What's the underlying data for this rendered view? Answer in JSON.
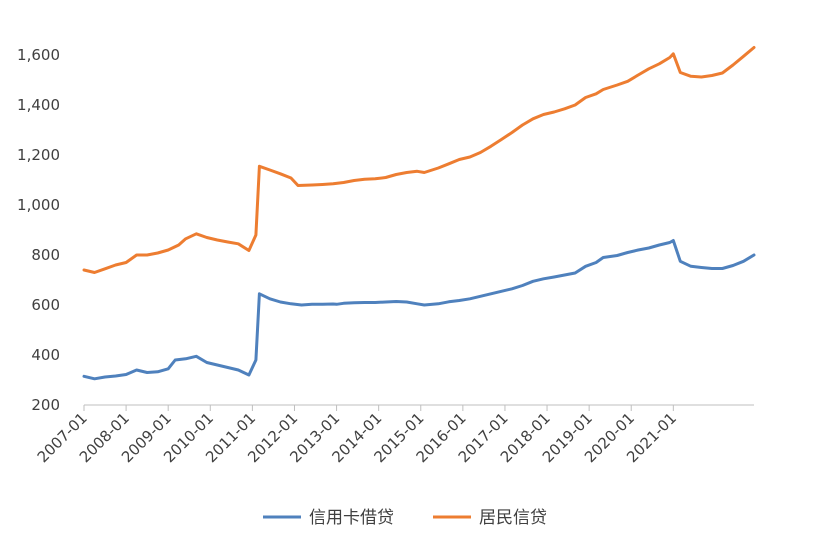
{
  "chart_data": {
    "type": "line",
    "title": "",
    "xlabel": "",
    "ylabel": "",
    "ylim": [
      200,
      1700
    ],
    "y_ticks": [
      200,
      400,
      600,
      800,
      1000,
      1200,
      1400,
      1600
    ],
    "y_tick_labels": [
      "200",
      "400",
      "600",
      "800",
      "1,000",
      "1,200",
      "1,400",
      "1,600"
    ],
    "x_start": "2007-01",
    "x_end": "2021-12",
    "x_tick_labels": [
      "2007-01",
      "2008-01",
      "2009-01",
      "2010-01",
      "2011-01",
      "2012-01",
      "2013-01",
      "2014-01",
      "2015-01",
      "2016-01",
      "2017-01",
      "2018-01",
      "2019-01",
      "2020-01",
      "2021-01"
    ],
    "grid": false,
    "legend_position": "bottom",
    "series": [
      {
        "name": "信用卡借贷",
        "color": "#4f81bd",
        "points": [
          [
            "2007-01",
            315
          ],
          [
            "2007-04",
            305
          ],
          [
            "2007-07",
            312
          ],
          [
            "2007-10",
            316
          ],
          [
            "2008-01",
            322
          ],
          [
            "2008-04",
            340
          ],
          [
            "2008-07",
            330
          ],
          [
            "2008-10",
            333
          ],
          [
            "2009-01",
            345
          ],
          [
            "2009-03",
            380
          ],
          [
            "2009-06",
            385
          ],
          [
            "2009-09",
            395
          ],
          [
            "2009-12",
            370
          ],
          [
            "2010-03",
            360
          ],
          [
            "2010-06",
            350
          ],
          [
            "2010-09",
            340
          ],
          [
            "2010-12",
            320
          ],
          [
            "2011-02",
            380
          ],
          [
            "2011-03",
            645
          ],
          [
            "2011-06",
            625
          ],
          [
            "2011-09",
            612
          ],
          [
            "2011-12",
            605
          ],
          [
            "2012-03",
            600
          ],
          [
            "2012-06",
            603
          ],
          [
            "2012-09",
            603
          ],
          [
            "2012-12",
            604
          ],
          [
            "2013-01",
            603
          ],
          [
            "2013-03",
            607
          ],
          [
            "2013-06",
            609
          ],
          [
            "2013-09",
            610
          ],
          [
            "2013-12",
            610
          ],
          [
            "2014-03",
            612
          ],
          [
            "2014-06",
            614
          ],
          [
            "2014-09",
            612
          ],
          [
            "2014-12",
            605
          ],
          [
            "2015-02",
            600
          ],
          [
            "2015-06",
            605
          ],
          [
            "2015-09",
            613
          ],
          [
            "2015-12",
            618
          ],
          [
            "2016-03",
            625
          ],
          [
            "2016-06",
            635
          ],
          [
            "2016-09",
            645
          ],
          [
            "2016-12",
            655
          ],
          [
            "2017-03",
            665
          ],
          [
            "2017-06",
            678
          ],
          [
            "2017-09",
            695
          ],
          [
            "2017-12",
            705
          ],
          [
            "2018-03",
            712
          ],
          [
            "2018-06",
            720
          ],
          [
            "2018-09",
            728
          ],
          [
            "2018-12",
            755
          ],
          [
            "2019-03",
            770
          ],
          [
            "2019-05",
            790
          ],
          [
            "2019-09",
            798
          ],
          [
            "2019-12",
            810
          ],
          [
            "2020-03",
            820
          ],
          [
            "2020-06",
            828
          ],
          [
            "2020-09",
            840
          ],
          [
            "2020-12",
            850
          ],
          [
            "2021-01",
            858
          ],
          [
            "2021-03",
            775
          ],
          [
            "2021-06",
            755
          ],
          [
            "2021-09",
            750
          ],
          [
            "2021-12",
            746
          ],
          [
            "2022-03",
            746
          ],
          [
            "2022-06",
            758
          ],
          [
            "2022-09",
            775
          ],
          [
            "2022-12",
            800
          ]
        ]
      },
      {
        "name": "居民信贷",
        "color": "#ed7d31",
        "points": [
          [
            "2007-01",
            740
          ],
          [
            "2007-04",
            730
          ],
          [
            "2007-07",
            745
          ],
          [
            "2007-10",
            760
          ],
          [
            "2008-01",
            770
          ],
          [
            "2008-04",
            800
          ],
          [
            "2008-07",
            800
          ],
          [
            "2008-10",
            808
          ],
          [
            "2009-01",
            820
          ],
          [
            "2009-04",
            840
          ],
          [
            "2009-06",
            865
          ],
          [
            "2009-09",
            885
          ],
          [
            "2009-12",
            870
          ],
          [
            "2010-03",
            860
          ],
          [
            "2010-06",
            852
          ],
          [
            "2010-09",
            845
          ],
          [
            "2010-12",
            818
          ],
          [
            "2011-02",
            880
          ],
          [
            "2011-03",
            1155
          ],
          [
            "2011-06",
            1140
          ],
          [
            "2011-09",
            1125
          ],
          [
            "2011-12",
            1108
          ],
          [
            "2012-02",
            1078
          ],
          [
            "2012-06",
            1080
          ],
          [
            "2012-09",
            1082
          ],
          [
            "2012-12",
            1085
          ],
          [
            "2013-03",
            1090
          ],
          [
            "2013-06",
            1098
          ],
          [
            "2013-09",
            1103
          ],
          [
            "2013-12",
            1105
          ],
          [
            "2014-03",
            1110
          ],
          [
            "2014-06",
            1122
          ],
          [
            "2014-09",
            1130
          ],
          [
            "2014-12",
            1135
          ],
          [
            "2015-02",
            1130
          ],
          [
            "2015-06",
            1148
          ],
          [
            "2015-09",
            1165
          ],
          [
            "2015-12",
            1182
          ],
          [
            "2016-03",
            1192
          ],
          [
            "2016-06",
            1210
          ],
          [
            "2016-09",
            1235
          ],
          [
            "2016-12",
            1262
          ],
          [
            "2017-03",
            1290
          ],
          [
            "2017-06",
            1320
          ],
          [
            "2017-09",
            1345
          ],
          [
            "2017-12",
            1362
          ],
          [
            "2018-03",
            1372
          ],
          [
            "2018-06",
            1385
          ],
          [
            "2018-09",
            1400
          ],
          [
            "2018-12",
            1430
          ],
          [
            "2019-03",
            1445
          ],
          [
            "2019-05",
            1462
          ],
          [
            "2019-09",
            1480
          ],
          [
            "2019-12",
            1495
          ],
          [
            "2020-03",
            1520
          ],
          [
            "2020-06",
            1545
          ],
          [
            "2020-09",
            1565
          ],
          [
            "2020-12",
            1590
          ],
          [
            "2021-01",
            1605
          ],
          [
            "2021-03",
            1530
          ],
          [
            "2021-06",
            1515
          ],
          [
            "2021-09",
            1512
          ],
          [
            "2021-12",
            1518
          ],
          [
            "2022-03",
            1528
          ],
          [
            "2022-06",
            1560
          ],
          [
            "2022-09",
            1595
          ],
          [
            "2022-12",
            1630
          ]
        ]
      }
    ]
  }
}
